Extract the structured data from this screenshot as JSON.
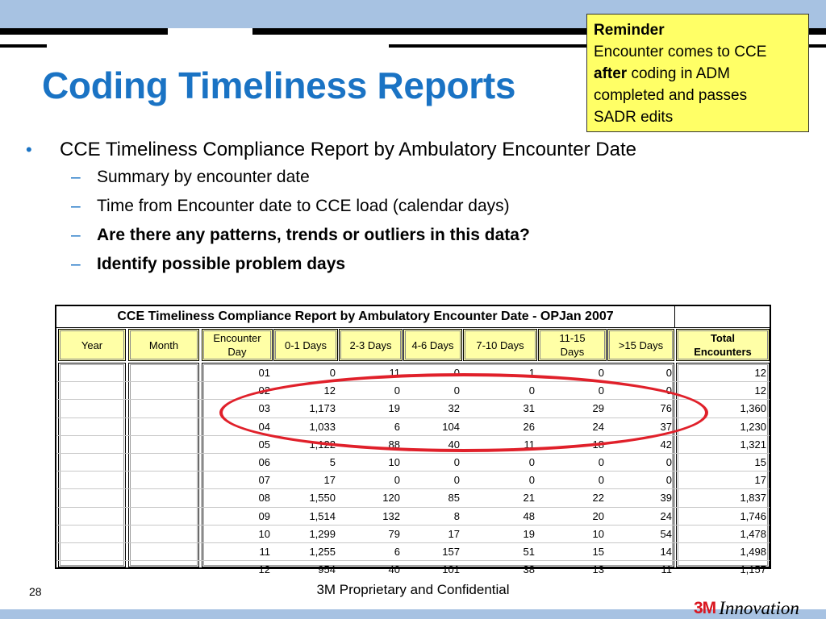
{
  "slide": {
    "title": "Coding Timeliness Reports",
    "page_number": "28",
    "footer": "3M Proprietary and Confidential",
    "logo_mark": "3M",
    "logo_text": "Innovation"
  },
  "reminder": {
    "title": "Reminder",
    "line1": "Encounter comes to CCE",
    "bold_word": "after",
    "line2_rest": " coding in ADM",
    "line3": "completed and passes",
    "line4": "SADR edits"
  },
  "bullets": {
    "main": "CCE Timeliness Compliance Report by Ambulatory  Encounter Date",
    "subs": [
      "Summary by encounter date",
      "Time from Encounter date to CCE load (calendar days)",
      "Are there any patterns, trends or outliers in this data?",
      "Identify possible problem days"
    ]
  },
  "report": {
    "title": "CCE Timeliness Compliance Report by Ambulatory Encounter Date - OPJan 2007",
    "headers": {
      "year": "Year",
      "month": "Month",
      "encounter_day_1": "Encounter",
      "encounter_day_2": "Day",
      "d0_1": "0-1 Days",
      "d2_3": "2-3 Days",
      "d4_6": "4-6 Days",
      "d7_10": "7-10 Days",
      "d11_15_1": "11-15",
      "d11_15_2": "Days",
      "d15p": ">15 Days",
      "total_1": "Total",
      "total_2": "Encounters"
    },
    "rows": [
      [
        "01",
        "0",
        "11",
        "0",
        "1",
        "0",
        "0",
        "12"
      ],
      [
        "02",
        "12",
        "0",
        "0",
        "0",
        "0",
        "0",
        "12"
      ],
      [
        "03",
        "1,173",
        "19",
        "32",
        "31",
        "29",
        "76",
        "1,360"
      ],
      [
        "04",
        "1,033",
        "6",
        "104",
        "26",
        "24",
        "37",
        "1,230"
      ],
      [
        "05",
        "1,122",
        "88",
        "40",
        "11",
        "18",
        "42",
        "1,321"
      ],
      [
        "06",
        "5",
        "10",
        "0",
        "0",
        "0",
        "0",
        "15"
      ],
      [
        "07",
        "17",
        "0",
        "0",
        "0",
        "0",
        "0",
        "17"
      ],
      [
        "08",
        "1,550",
        "120",
        "85",
        "21",
        "22",
        "39",
        "1,837"
      ],
      [
        "09",
        "1,514",
        "132",
        "8",
        "48",
        "20",
        "24",
        "1,746"
      ],
      [
        "10",
        "1,299",
        "79",
        "17",
        "19",
        "10",
        "54",
        "1,478"
      ],
      [
        "11",
        "1,255",
        "6",
        "157",
        "51",
        "15",
        "14",
        "1,498"
      ],
      [
        "12",
        "954",
        "40",
        "101",
        "38",
        "13",
        "11",
        "1,157"
      ]
    ]
  },
  "colors": {
    "title_blue": "#1a73c4",
    "band_blue": "#a7c2e2",
    "reminder_yellow": "#ffff66",
    "header_yellow": "#ffffa6",
    "highlight_red": "#e0202a"
  }
}
